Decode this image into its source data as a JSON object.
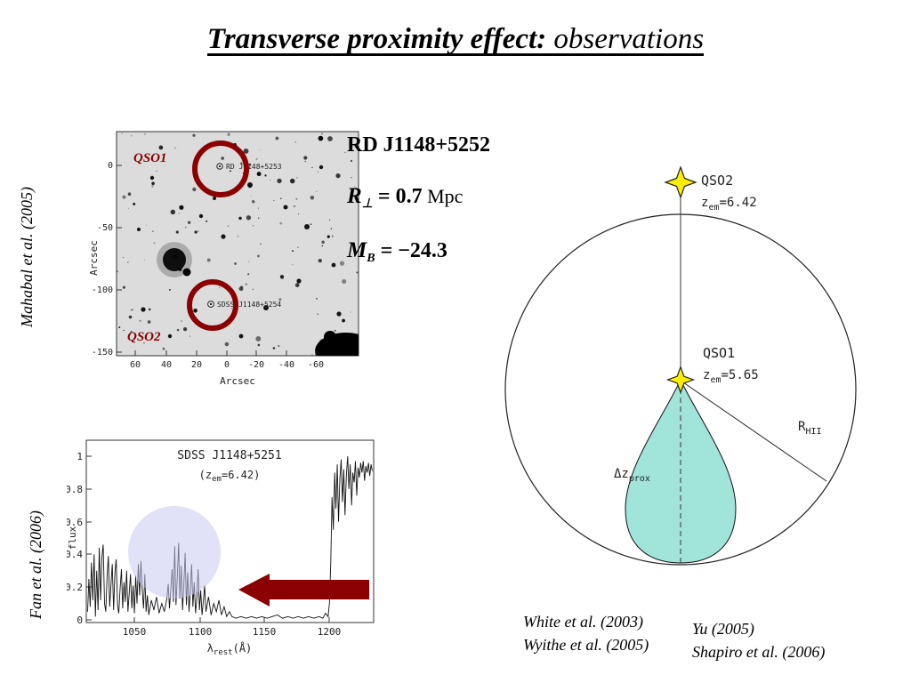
{
  "title": {
    "bold": "Transverse proximity effect:",
    "italic": " observations"
  },
  "citations": {
    "left_top": "Mahabal et al. (2005)",
    "left_bottom": "Fan et al. (2006)",
    "white": "White et al. (2003)",
    "wyithe": "Wyithe et al. (2005)",
    "yu": "Yu (2005)",
    "shapiro": "Shapiro et al. (2006)"
  },
  "sky": {
    "qso1_tag": "QSO1",
    "qso2_tag": "QSO2",
    "qso1_name": "RD J1148+5253",
    "qso2_name": "SDSS J1148+5254",
    "y_axis_label": "Arcsec",
    "x_axis_label": "Arcsec",
    "y_ticks": [
      "0",
      "-50",
      "-100",
      "-150"
    ],
    "x_ticks": [
      "60",
      "40",
      "20",
      "0",
      "-20",
      "-40",
      "-60"
    ],
    "circle_color": "#8b0000"
  },
  "info": {
    "object_name": "RD J1148+5252",
    "r_symbol": "R",
    "r_sub": "⊥",
    "r_value": " = 0.7",
    "r_unit": " Mpc",
    "m_symbol": "M",
    "m_sub": "B",
    "m_value": " = −24.3"
  },
  "diagram": {
    "qso2_label": "QSO2",
    "qso2_z": "z",
    "qso2_z_sub": "em",
    "qso2_z_val": "=6.42",
    "qso1_label": "QSO1",
    "qso1_z": "z",
    "qso1_z_sub": "em",
    "qso1_z_val": "=5.65",
    "dz": "Δz",
    "dz_sub": "prox",
    "rhii": "R",
    "rhii_sub": "HII",
    "egg_color": "#a0e4da",
    "star_color": "#ffee00"
  },
  "chart_data": {
    "type": "line",
    "title": "SDSS J1148+5251",
    "subtitle_prefix": "(z",
    "subtitle_sub": "em",
    "subtitle_suffix": "=6.42)",
    "xlabel_prefix": "λ",
    "xlabel_sub": "rest",
    "xlabel_suffix": "(Å)",
    "ylabel": "flux",
    "x_ticks": [
      "1050",
      "1100",
      "1150",
      "1200"
    ],
    "y_ticks": [
      "0",
      "0.2",
      "0.4",
      "0.6",
      "0.8",
      "1"
    ],
    "xlim": [
      1013,
      1234
    ],
    "ylim": [
      0,
      1.05
    ],
    "legend": "none",
    "grid": false,
    "series": [
      {
        "name": "flux",
        "points": [
          [
            1014,
            0.05
          ],
          [
            1015,
            0.25
          ],
          [
            1016,
            0.08
          ],
          [
            1017,
            0.35
          ],
          [
            1018,
            0.12
          ],
          [
            1019,
            0.4
          ],
          [
            1020,
            0.02
          ],
          [
            1021,
            0.3
          ],
          [
            1022,
            0.06
          ],
          [
            1023,
            0.44
          ],
          [
            1024,
            0.12
          ],
          [
            1025,
            0.38
          ],
          [
            1026,
            0.46
          ],
          [
            1027,
            0.1
          ],
          [
            1028,
            0.05
          ],
          [
            1029,
            0.27
          ],
          [
            1030,
            0.39
          ],
          [
            1031,
            0.08
          ],
          [
            1032,
            0.22
          ],
          [
            1033,
            0.34
          ],
          [
            1034,
            0.06
          ],
          [
            1035,
            0.29
          ],
          [
            1036,
            0.37
          ],
          [
            1037,
            0.09
          ],
          [
            1038,
            0.04
          ],
          [
            1039,
            0.19
          ],
          [
            1040,
            0.31
          ],
          [
            1041,
            0.07
          ],
          [
            1042,
            0.23
          ],
          [
            1043,
            0.11
          ],
          [
            1044,
            0.3
          ],
          [
            1045,
            0.05
          ],
          [
            1046,
            0.16
          ],
          [
            1047,
            0.28
          ],
          [
            1048,
            0.07
          ],
          [
            1049,
            0.21
          ],
          [
            1050,
            0.04
          ],
          [
            1051,
            0.27
          ],
          [
            1052,
            0.1
          ],
          [
            1053,
            0.34
          ],
          [
            1054,
            0.15
          ],
          [
            1055,
            0.36
          ],
          [
            1056,
            0.19
          ],
          [
            1057,
            0.07
          ],
          [
            1058,
            0.28
          ],
          [
            1059,
            0.05
          ],
          [
            1060,
            0.15
          ],
          [
            1061,
            0.03
          ],
          [
            1063,
            0.12
          ],
          [
            1065,
            0.06
          ],
          [
            1067,
            0.14
          ],
          [
            1069,
            0.04
          ],
          [
            1071,
            0.1
          ],
          [
            1073,
            0.05
          ],
          [
            1075,
            0.13
          ],
          [
            1076,
            0.22
          ],
          [
            1077,
            0.07
          ],
          [
            1079,
            0.31
          ],
          [
            1080,
            0.11
          ],
          [
            1081,
            0.45
          ],
          [
            1082,
            0.09
          ],
          [
            1083,
            0.26
          ],
          [
            1084,
            0.47
          ],
          [
            1085,
            0.13
          ],
          [
            1086,
            0.33
          ],
          [
            1087,
            0.06
          ],
          [
            1088,
            0.21
          ],
          [
            1089,
            0.41
          ],
          [
            1090,
            0.09
          ],
          [
            1091,
            0.29
          ],
          [
            1092,
            0.05
          ],
          [
            1093,
            0.18
          ],
          [
            1094,
            0.34
          ],
          [
            1095,
            0.08
          ],
          [
            1096,
            0.23
          ],
          [
            1097,
            0.04
          ],
          [
            1098,
            0.13
          ],
          [
            1099,
            0.31
          ],
          [
            1100,
            0.06
          ],
          [
            1101,
            0.18
          ],
          [
            1102,
            0.03
          ],
          [
            1103,
            0.11
          ],
          [
            1104,
            0.21
          ],
          [
            1105,
            0.05
          ],
          [
            1107,
            0.14
          ],
          [
            1109,
            0.03
          ],
          [
            1111,
            0.1
          ],
          [
            1113,
            0.05
          ],
          [
            1115,
            0.12
          ],
          [
            1117,
            0.03
          ],
          [
            1119,
            0.08
          ],
          [
            1121,
            0.02
          ],
          [
            1123,
            0.05
          ],
          [
            1125,
            0.02
          ],
          [
            1128,
            0.01
          ],
          [
            1132,
            0.02
          ],
          [
            1136,
            0.01
          ],
          [
            1140,
            0.02
          ],
          [
            1144,
            0.01
          ],
          [
            1148,
            0.02
          ],
          [
            1152,
            0.01
          ],
          [
            1156,
            0.02
          ],
          [
            1160,
            0.03
          ],
          [
            1164,
            0.01
          ],
          [
            1168,
            0.02
          ],
          [
            1172,
            0.01
          ],
          [
            1176,
            0.02
          ],
          [
            1180,
            0.01
          ],
          [
            1184,
            0.02
          ],
          [
            1188,
            0.01
          ],
          [
            1192,
            0.02
          ],
          [
            1195,
            0.01
          ],
          [
            1197,
            0.04
          ],
          [
            1199,
            0.02
          ],
          [
            1200,
            0.1
          ],
          [
            1201,
            0.35
          ],
          [
            1202,
            0.75
          ],
          [
            1203,
            0.55
          ],
          [
            1204,
            0.9
          ],
          [
            1205,
            0.68
          ],
          [
            1206,
            0.95
          ],
          [
            1207,
            0.6
          ],
          [
            1208,
            0.86
          ],
          [
            1209,
            0.98
          ],
          [
            1210,
            0.72
          ],
          [
            1211,
            0.92
          ],
          [
            1212,
            0.64
          ],
          [
            1213,
            0.88
          ],
          [
            1214,
            1.0
          ],
          [
            1215,
            0.8
          ],
          [
            1216,
            0.95
          ],
          [
            1217,
            0.7
          ],
          [
            1218,
            0.9
          ],
          [
            1219,
            0.84
          ],
          [
            1220,
            0.97
          ],
          [
            1221,
            0.76
          ],
          [
            1222,
            0.93
          ],
          [
            1223,
            0.87
          ],
          [
            1224,
            0.96
          ],
          [
            1225,
            0.9
          ],
          [
            1226,
            0.97
          ],
          [
            1227,
            0.85
          ],
          [
            1228,
            0.94
          ],
          [
            1229,
            0.9
          ],
          [
            1230,
            0.96
          ],
          [
            1231,
            0.88
          ],
          [
            1232,
            0.95
          ],
          [
            1233,
            0.91
          ]
        ]
      }
    ]
  }
}
